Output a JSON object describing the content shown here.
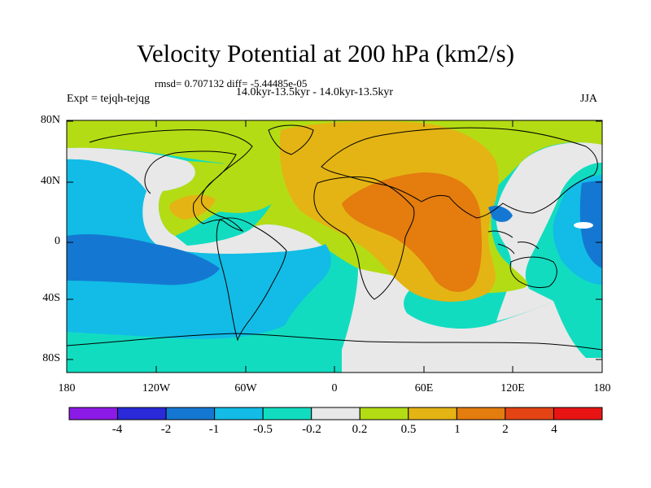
{
  "title": "Velocity Potential at 200 hPa (km2/s)",
  "rmsd_line": "rmsd= 0.707132 diff= -5.44485e-05",
  "period_line": "14.0kyr-13.5kyr - 14.0kyr-13.5kyr",
  "expt_label": "Expt = tejqh-tejqg",
  "season": "JJA",
  "axes": {
    "lat_ticks": [
      "80N",
      "40N",
      "0",
      "40S",
      "80S"
    ],
    "lon_ticks": [
      "180",
      "120W",
      "60W",
      "0",
      "60E",
      "120E",
      "180"
    ]
  },
  "colorbar": {
    "levels": [
      "-4",
      "-2",
      "-1",
      "-0.5",
      "-0.2",
      "0.2",
      "0.5",
      "1",
      "2",
      "4"
    ],
    "colors": [
      "#8c1ae6",
      "#2a2ad8",
      "#1478d2",
      "#12bce6",
      "#12dcc0",
      "#e8e8e8",
      "#b4dc14",
      "#e4b414",
      "#e47c0e",
      "#e44414",
      "#e81414"
    ]
  },
  "field_colors": {
    "ocean_base": "#12dcc0",
    "neutral": "#e8e8e8",
    "weak_neg": "#12bce6",
    "neg": "#1478d2",
    "weak_pos": "#b4dc14",
    "pos": "#e4b414",
    "strong_pos": "#e47c0e"
  }
}
